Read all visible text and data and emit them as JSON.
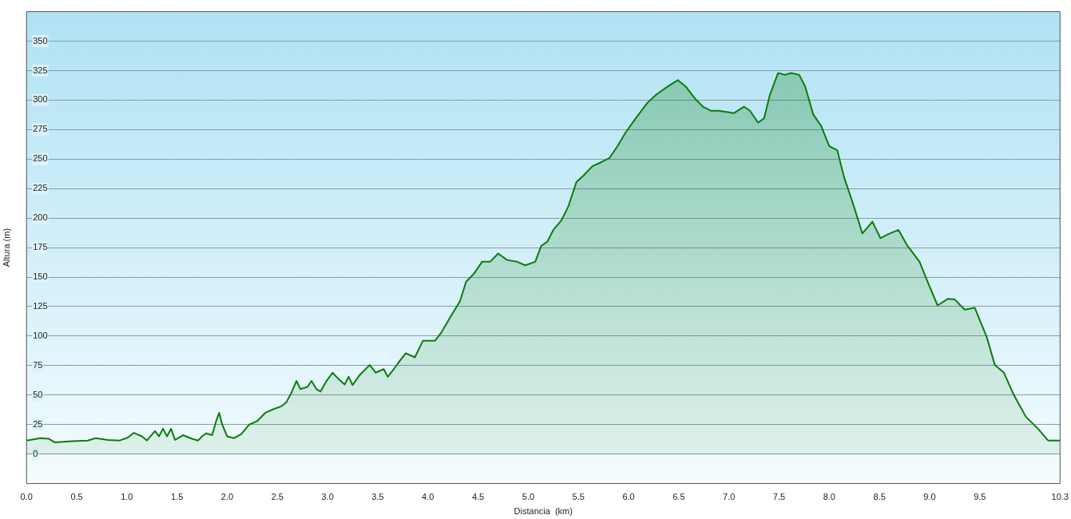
{
  "chart_data": {
    "type": "area",
    "xlabel": "Distancia  (km)",
    "ylabel": "Altura (m)",
    "xlim": [
      0,
      10.3
    ],
    "xticks": [
      {
        "value": 0,
        "label": "0.0"
      },
      {
        "value": 0.5,
        "label": "0.5"
      },
      {
        "value": 1,
        "label": "1.0"
      },
      {
        "value": 1.5,
        "label": "1.5"
      },
      {
        "value": 2,
        "label": "2.0"
      },
      {
        "value": 2.5,
        "label": "2.5"
      },
      {
        "value": 3,
        "label": "3.0"
      },
      {
        "value": 3.5,
        "label": "3.5"
      },
      {
        "value": 4,
        "label": "4.0"
      },
      {
        "value": 4.5,
        "label": "4.5"
      },
      {
        "value": 5,
        "label": "5.0"
      },
      {
        "value": 5.5,
        "label": "5.5"
      },
      {
        "value": 6,
        "label": "6.0"
      },
      {
        "value": 6.5,
        "label": "6.5"
      },
      {
        "value": 7,
        "label": "7.0"
      },
      {
        "value": 7.5,
        "label": "7.5"
      },
      {
        "value": 8,
        "label": "8.0"
      },
      {
        "value": 8.5,
        "label": "8.5"
      },
      {
        "value": 9,
        "label": "9.0"
      },
      {
        "value": 9.5,
        "label": "9.5"
      },
      {
        "value": 10.3,
        "label": "10.3"
      }
    ],
    "ylim": [
      -25,
      375
    ],
    "yticks": [
      0,
      25,
      50,
      75,
      100,
      125,
      150,
      175,
      200,
      225,
      250,
      275,
      300,
      325,
      350
    ],
    "grid": "y",
    "legend": false,
    "marker": "none",
    "series": [
      {
        "color": "#0a7d0a",
        "x": [
          0,
          0.14,
          0.22,
          0.28,
          0.46,
          0.61,
          0.69,
          0.81,
          0.93,
          1.01,
          1.07,
          1.15,
          1.2,
          1.28,
          1.32,
          1.36,
          1.4,
          1.44,
          1.48,
          1.56,
          1.65,
          1.71,
          1.75,
          1.79,
          1.85,
          1.89,
          1.92,
          1.95,
          2.0,
          2.07,
          2.14,
          2.22,
          2.3,
          2.38,
          2.46,
          2.54,
          2.59,
          2.64,
          2.69,
          2.73,
          2.8,
          2.84,
          2.89,
          2.93,
          2.99,
          3.05,
          3.11,
          3.17,
          3.21,
          3.25,
          3.32,
          3.42,
          3.48,
          3.56,
          3.6,
          3.66,
          3.72,
          3.78,
          3.87,
          3.95,
          4.01,
          4.07,
          4.13,
          4.23,
          4.32,
          4.38,
          4.46,
          4.54,
          4.62,
          4.7,
          4.79,
          4.89,
          4.97,
          5.07,
          5.13,
          5.19,
          5.25,
          5.33,
          5.4,
          5.48,
          5.55,
          5.64,
          5.73,
          5.81,
          5.89,
          5.97,
          6.07,
          6.19,
          6.28,
          6.39,
          6.49,
          6.57,
          6.66,
          6.74,
          6.82,
          6.9,
          6.98,
          7.05,
          7.15,
          7.21,
          7.29,
          7.35,
          7.41,
          7.49,
          7.56,
          7.62,
          7.7,
          7.76,
          7.84,
          7.92,
          8.0,
          8.08,
          8.15,
          8.23,
          8.33,
          8.43,
          8.51,
          8.59,
          8.69,
          8.78,
          8.9,
          8.98,
          9.08,
          9.18,
          9.25,
          9.35,
          9.45,
          9.57,
          9.65,
          9.74,
          9.84,
          9.96,
          10.08,
          10.18,
          10.3
        ],
        "values": [
          11.5,
          13.5,
          13,
          10,
          11,
          11.5,
          13.5,
          12,
          11.5,
          14,
          18,
          15,
          11.5,
          19.5,
          15,
          21.5,
          15,
          21.5,
          12,
          16,
          13,
          11.5,
          15,
          17.5,
          16,
          28,
          35,
          25,
          15,
          13.5,
          17,
          25,
          28,
          35,
          38,
          40.5,
          44,
          52,
          62,
          55,
          57,
          62,
          55,
          53,
          62,
          69,
          63.5,
          59,
          65.5,
          58.5,
          67,
          75.5,
          69,
          72,
          65.5,
          72,
          79,
          85.5,
          82,
          96,
          96,
          96,
          102.5,
          117,
          129.5,
          146,
          153,
          163,
          163,
          170,
          164.5,
          163,
          160,
          163,
          176.5,
          180,
          190,
          198,
          210,
          230.5,
          236,
          244,
          247.5,
          251,
          261,
          272.5,
          284.5,
          298,
          305,
          311.5,
          317,
          311.5,
          301.5,
          294.5,
          291,
          291,
          290,
          289,
          294.5,
          291,
          281,
          284.5,
          305,
          323,
          321.5,
          323,
          321.5,
          311.5,
          288,
          278,
          261,
          257.5,
          234,
          214,
          187,
          197,
          183,
          186.5,
          190,
          176.5,
          163,
          146,
          126,
          131.5,
          131,
          122.5,
          124,
          99,
          75.5,
          69,
          50,
          31.5,
          21.5,
          11.5,
          11.5
        ]
      }
    ]
  }
}
